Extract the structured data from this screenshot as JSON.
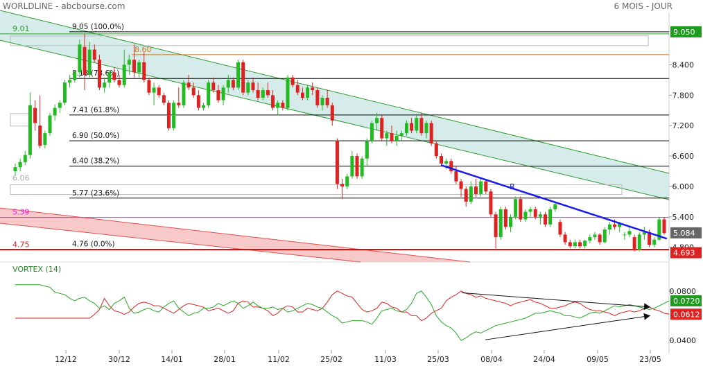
{
  "header": {
    "title": "WORLDLINE - abcbourse.com",
    "period": "6 MOIS - JOUR"
  },
  "colors": {
    "up": "#22bb22",
    "down": "#dd2222",
    "channel_fill": "#cfe9e6",
    "channel_line": "#2e9a2e",
    "lower_band_fill": "#f7c9c9",
    "lower_band_line": "#e05050",
    "trend_line": "#1a1aee",
    "magenta": "#dd22dd",
    "vi_plus": "#22aa22",
    "vi_minus": "#dd2222",
    "fib_line": "#000000",
    "orange": "#cc7722"
  },
  "price_panel": {
    "fib_levels": [
      {
        "label": "9.05  (100.0%)",
        "value": 9.05
      },
      {
        "label": "8.13  (78.6%)",
        "value": 8.13
      },
      {
        "label": "7.41  (61.8%)",
        "value": 7.41
      },
      {
        "label": "6.90  (50.0%)",
        "value": 6.9
      },
      {
        "label": "6.40  (38.2%)",
        "value": 6.4
      },
      {
        "label": "5.77  (23.6%)",
        "value": 5.77
      },
      {
        "label": "4.76  (0.0%)",
        "value": 4.76
      }
    ],
    "left_labels": [
      {
        "text": "9.01",
        "value": 9.01,
        "color": "#2e9a2e"
      },
      {
        "text": "6.06",
        "value": 6.06,
        "color": "#aaaaaa"
      },
      {
        "text": "5.39",
        "value": 5.39,
        "color": "#dd22dd"
      },
      {
        "text": "4.75",
        "value": 4.75,
        "color": "#dd2222"
      }
    ],
    "orange_label": {
      "text": "8.60",
      "value": 8.6
    },
    "trend_label": "R",
    "axis_ticks": [
      "8.400",
      "7.800",
      "7.200",
      "6.600",
      "6.000",
      "5.400",
      "4.800"
    ],
    "axis_tick_values": [
      8.4,
      7.8,
      7.2,
      6.6,
      6.0,
      5.4,
      4.8
    ],
    "badges": [
      {
        "text": "9.050",
        "value": 9.05,
        "bg": "#1e9a1e"
      },
      {
        "text": "5.084",
        "value": 5.084,
        "bg": "#666666"
      },
      {
        "text": "4.693",
        "value": 4.693,
        "bg": "#dd2222"
      }
    ]
  },
  "vortex_panel": {
    "title": "VORTEX (14)",
    "axis_ticks": [
      "0.0800",
      "0.0400"
    ],
    "axis_tick_values": [
      0.08,
      0.04
    ],
    "badges": [
      {
        "text": "0.0720",
        "value": 0.072,
        "bg": "#1e9a1e"
      },
      {
        "text": "0.0612",
        "value": 0.0612,
        "bg": "#dd2222"
      }
    ]
  },
  "x_labels": [
    "12/12",
    "30/12",
    "14/01",
    "28/01",
    "11/02",
    "25/02",
    "11/03",
    "25/03",
    "08/04",
    "24/04",
    "09/05",
    "23/05"
  ],
  "chart_data": {
    "type": "candlestick",
    "title": "WORLDLINE",
    "period": "6 MOIS - JOUR",
    "candles": [
      [
        6.3,
        6.45,
        6.22,
        6.38
      ],
      [
        6.38,
        6.55,
        6.3,
        6.48
      ],
      [
        6.48,
        6.7,
        6.42,
        6.62
      ],
      [
        6.62,
        7.85,
        6.55,
        7.6
      ],
      [
        7.55,
        7.7,
        7.1,
        7.25
      ],
      [
        7.2,
        7.8,
        6.75,
        6.8
      ],
      [
        6.82,
        7.1,
        6.75,
        7.05
      ],
      [
        7.05,
        7.45,
        7.0,
        7.4
      ],
      [
        7.4,
        7.62,
        7.3,
        7.55
      ],
      [
        7.55,
        7.7,
        7.45,
        7.65
      ],
      [
        7.65,
        8.1,
        7.6,
        8.05
      ],
      [
        8.05,
        8.2,
        7.95,
        8.1
      ],
      [
        8.1,
        8.3,
        8.05,
        8.25
      ],
      [
        8.25,
        8.9,
        8.15,
        8.8
      ],
      [
        8.75,
        9.01,
        7.9,
        8.2
      ],
      [
        8.2,
        8.85,
        8.15,
        8.7
      ],
      [
        8.7,
        8.8,
        8.45,
        8.5
      ],
      [
        8.5,
        8.6,
        7.9,
        7.95
      ],
      [
        7.95,
        8.15,
        7.85,
        8.05
      ],
      [
        8.05,
        8.3,
        7.95,
        8.25
      ],
      [
        8.25,
        8.35,
        8.05,
        8.1
      ],
      [
        8.1,
        8.2,
        7.95,
        8.0
      ],
      [
        8.0,
        8.7,
        7.95,
        8.4
      ],
      [
        8.4,
        8.6,
        8.2,
        8.5
      ],
      [
        8.5,
        8.8,
        8.15,
        8.25
      ],
      [
        8.25,
        8.5,
        8.15,
        8.45
      ],
      [
        8.45,
        8.65,
        8.05,
        8.1
      ],
      [
        8.1,
        8.15,
        7.8,
        7.85
      ],
      [
        7.85,
        8.05,
        7.6,
        7.95
      ],
      [
        7.95,
        8.0,
        7.75,
        7.8
      ],
      [
        7.8,
        7.85,
        7.6,
        7.65
      ],
      [
        7.65,
        7.7,
        7.1,
        7.15
      ],
      [
        7.15,
        7.7,
        7.1,
        7.65
      ],
      [
        7.65,
        7.95,
        7.55,
        7.6
      ],
      [
        7.6,
        8.1,
        7.55,
        8.05
      ],
      [
        8.05,
        8.2,
        7.9,
        7.95
      ],
      [
        7.95,
        8.05,
        7.75,
        7.8
      ],
      [
        7.8,
        7.9,
        7.5,
        7.55
      ],
      [
        7.55,
        7.65,
        7.5,
        7.6
      ],
      [
        7.6,
        8.1,
        7.55,
        8.05
      ],
      [
        8.05,
        8.15,
        7.85,
        7.9
      ],
      [
        7.9,
        8.0,
        7.65,
        7.7
      ],
      [
        7.7,
        8.0,
        7.6,
        7.95
      ],
      [
        7.95,
        8.2,
        7.85,
        8.1
      ],
      [
        8.1,
        8.15,
        7.9,
        7.95
      ],
      [
        7.95,
        8.5,
        7.9,
        8.45
      ],
      [
        8.45,
        8.5,
        7.8,
        7.85
      ],
      [
        7.85,
        8.1,
        7.8,
        8.05
      ],
      [
        8.05,
        8.15,
        7.85,
        7.9
      ],
      [
        7.9,
        8.05,
        7.7,
        7.75
      ],
      [
        7.75,
        7.95,
        7.7,
        7.9
      ],
      [
        7.9,
        8.05,
        7.75,
        7.8
      ],
      [
        7.8,
        7.9,
        7.5,
        7.55
      ],
      [
        7.55,
        7.7,
        7.4,
        7.65
      ],
      [
        7.65,
        7.7,
        7.5,
        7.55
      ],
      [
        7.55,
        8.2,
        7.5,
        8.15
      ],
      [
        8.15,
        8.2,
        7.95,
        8.0
      ],
      [
        8.0,
        8.1,
        7.8,
        7.85
      ],
      [
        7.85,
        7.95,
        7.7,
        7.75
      ],
      [
        7.75,
        8.0,
        7.7,
        7.95
      ],
      [
        7.95,
        8.05,
        7.8,
        7.9
      ],
      [
        7.9,
        7.95,
        7.55,
        7.6
      ],
      [
        7.6,
        7.8,
        7.5,
        7.75
      ],
      [
        7.75,
        7.9,
        7.55,
        7.6
      ],
      [
        7.6,
        7.65,
        7.2,
        7.3
      ],
      [
        6.9,
        6.95,
        5.95,
        6.05
      ],
      [
        6.05,
        6.15,
        5.75,
        6.0
      ],
      [
        6.0,
        6.25,
        5.95,
        6.2
      ],
      [
        6.2,
        6.7,
        6.15,
        6.6
      ],
      [
        6.6,
        6.65,
        6.15,
        6.2
      ],
      [
        6.2,
        6.6,
        6.15,
        6.55
      ],
      [
        6.55,
        6.95,
        6.4,
        6.9
      ],
      [
        6.9,
        7.3,
        6.85,
        7.25
      ],
      [
        7.25,
        7.45,
        7.1,
        7.35
      ],
      [
        7.35,
        7.4,
        6.9,
        6.95
      ],
      [
        6.95,
        7.1,
        6.8,
        7.05
      ],
      [
        7.05,
        7.2,
        6.85,
        6.9
      ],
      [
        6.9,
        7.1,
        6.8,
        7.0
      ],
      [
        7.0,
        7.1,
        6.9,
        7.05
      ],
      [
        7.05,
        7.3,
        7.0,
        7.25
      ],
      [
        7.25,
        7.35,
        7.05,
        7.1
      ],
      [
        7.1,
        7.4,
        7.05,
        7.35
      ],
      [
        7.35,
        7.45,
        7.0,
        7.05
      ],
      [
        7.05,
        7.3,
        6.95,
        7.25
      ],
      [
        7.25,
        7.3,
        6.8,
        6.85
      ],
      [
        6.85,
        6.9,
        6.55,
        6.6
      ],
      [
        6.6,
        6.65,
        6.4,
        6.45
      ],
      [
        6.45,
        6.55,
        6.35,
        6.5
      ],
      [
        6.5,
        6.55,
        6.25,
        6.3
      ],
      [
        6.3,
        6.4,
        6.05,
        6.1
      ],
      [
        6.1,
        6.15,
        5.8,
        5.95
      ],
      [
        5.95,
        6.0,
        5.6,
        5.7
      ],
      [
        5.7,
        6.1,
        5.65,
        6.0
      ],
      [
        6.0,
        6.15,
        5.8,
        5.85
      ],
      [
        5.85,
        6.15,
        5.8,
        6.1
      ],
      [
        6.1,
        6.15,
        5.85,
        5.9
      ],
      [
        5.9,
        5.95,
        5.4,
        5.45
      ],
      [
        5.45,
        5.5,
        4.75,
        5.0
      ],
      [
        5.0,
        5.6,
        4.95,
        5.55
      ],
      [
        5.55,
        5.6,
        5.15,
        5.2
      ],
      [
        5.2,
        5.45,
        5.1,
        5.4
      ],
      [
        5.4,
        5.8,
        5.35,
        5.75
      ],
      [
        5.75,
        5.8,
        5.3,
        5.35
      ],
      [
        5.35,
        5.55,
        5.3,
        5.5
      ],
      [
        5.5,
        5.6,
        5.4,
        5.55
      ],
      [
        5.55,
        5.6,
        5.35,
        5.4
      ],
      [
        5.4,
        5.5,
        5.25,
        5.45
      ],
      [
        5.45,
        5.5,
        5.2,
        5.25
      ],
      [
        5.25,
        5.6,
        5.2,
        5.55
      ],
      [
        5.55,
        5.7,
        5.5,
        5.65
      ],
      [
        5.3,
        5.35,
        5.0,
        5.05
      ],
      [
        5.05,
        5.1,
        4.85,
        4.9
      ],
      [
        4.9,
        4.95,
        4.78,
        4.82
      ],
      [
        4.82,
        4.95,
        4.78,
        4.9
      ],
      [
        4.9,
        4.95,
        4.78,
        4.82
      ],
      [
        4.82,
        4.95,
        4.78,
        4.93
      ],
      [
        4.93,
        5.05,
        4.88,
        5.0
      ],
      [
        5.0,
        5.1,
        4.95,
        5.05
      ],
      [
        5.05,
        5.08,
        4.85,
        4.9
      ],
      [
        4.9,
        5.2,
        4.88,
        5.15
      ],
      [
        5.15,
        5.3,
        5.05,
        5.25
      ],
      [
        5.25,
        5.35,
        5.15,
        5.2
      ],
      [
        5.2,
        5.3,
        5.1,
        5.28
      ],
      [
        5.05,
        5.1,
        4.95,
        5.05
      ],
      [
        5.05,
        5.2,
        5.0,
        5.12
      ],
      [
        5.0,
        5.05,
        4.72,
        4.75
      ],
      [
        4.75,
        5.1,
        4.72,
        5.05
      ],
      [
        5.05,
        5.2,
        4.95,
        5.1
      ],
      [
        5.1,
        5.15,
        4.8,
        4.85
      ],
      [
        4.85,
        5.0,
        4.8,
        4.95
      ],
      [
        4.95,
        5.4,
        4.93,
        5.35
      ],
      [
        5.35,
        5.4,
        5.05,
        5.08
      ]
    ],
    "vi_plus": [
      0.085,
      0.085,
      0.085,
      0.085,
      0.085,
      0.085,
      0.084,
      0.083,
      0.079,
      0.078,
      0.077,
      0.074,
      0.072,
      0.074,
      0.075,
      0.072,
      0.07,
      0.066,
      0.068,
      0.065,
      0.07,
      0.072,
      0.075,
      0.066,
      0.062,
      0.063,
      0.065,
      0.066,
      0.064,
      0.063,
      0.067,
      0.07,
      0.072,
      0.066,
      0.063,
      0.06,
      0.062,
      0.063,
      0.066,
      0.066,
      0.067,
      0.07,
      0.068,
      0.07,
      0.072,
      0.07,
      0.066,
      0.068,
      0.071,
      0.068,
      0.066,
      0.066,
      0.067,
      0.065,
      0.066,
      0.063,
      0.064,
      0.066,
      0.068,
      0.07,
      0.069,
      0.067,
      0.066,
      0.063,
      0.06,
      0.058,
      0.054,
      0.055,
      0.056,
      0.056,
      0.056,
      0.055,
      0.053,
      0.058,
      0.064,
      0.065,
      0.066,
      0.064,
      0.063,
      0.065,
      0.07,
      0.078,
      0.08,
      0.075,
      0.069,
      0.06,
      0.055,
      0.052,
      0.05,
      0.046,
      0.04,
      0.042,
      0.045,
      0.047,
      0.046,
      0.048,
      0.05,
      0.052,
      0.053,
      0.054,
      0.055,
      0.056,
      0.057,
      0.058,
      0.06,
      0.062,
      0.062,
      0.063,
      0.064,
      0.063,
      0.062,
      0.06,
      0.06,
      0.059,
      0.058,
      0.06,
      0.062,
      0.063,
      0.062,
      0.064,
      0.066,
      0.068,
      0.067,
      0.068,
      0.069,
      0.068,
      0.067,
      0.066,
      0.065,
      0.066,
      0.068,
      0.07,
      0.072
    ],
    "vi_minus": [
      0.058,
      0.058,
      0.058,
      0.058,
      0.058,
      0.058,
      0.058,
      0.058,
      0.058,
      0.058,
      0.058,
      0.058,
      0.058,
      0.058,
      0.058,
      0.058,
      0.061,
      0.065,
      0.074,
      0.068,
      0.064,
      0.063,
      0.061,
      0.063,
      0.067,
      0.07,
      0.071,
      0.07,
      0.068,
      0.068,
      0.066,
      0.064,
      0.062,
      0.065,
      0.068,
      0.07,
      0.069,
      0.068,
      0.067,
      0.064,
      0.065,
      0.066,
      0.064,
      0.062,
      0.064,
      0.07,
      0.072,
      0.071,
      0.067,
      0.067,
      0.066,
      0.064,
      0.06,
      0.062,
      0.066,
      0.068,
      0.067,
      0.063,
      0.063,
      0.066,
      0.065,
      0.064,
      0.066,
      0.071,
      0.077,
      0.08,
      0.078,
      0.076,
      0.075,
      0.07,
      0.065,
      0.063,
      0.064,
      0.066,
      0.071,
      0.07,
      0.067,
      0.066,
      0.063,
      0.063,
      0.06,
      0.06,
      0.056,
      0.058,
      0.062,
      0.064,
      0.066,
      0.072,
      0.075,
      0.077,
      0.08,
      0.078,
      0.077,
      0.075,
      0.076,
      0.074,
      0.073,
      0.072,
      0.071,
      0.07,
      0.068,
      0.07,
      0.071,
      0.072,
      0.073,
      0.071,
      0.07,
      0.068,
      0.066,
      0.066,
      0.067,
      0.068,
      0.07,
      0.071,
      0.07,
      0.067,
      0.065,
      0.064,
      0.064,
      0.063,
      0.062,
      0.06,
      0.062,
      0.063,
      0.064,
      0.063,
      0.064,
      0.066,
      0.067,
      0.065,
      0.064,
      0.062,
      0.0612
    ]
  }
}
